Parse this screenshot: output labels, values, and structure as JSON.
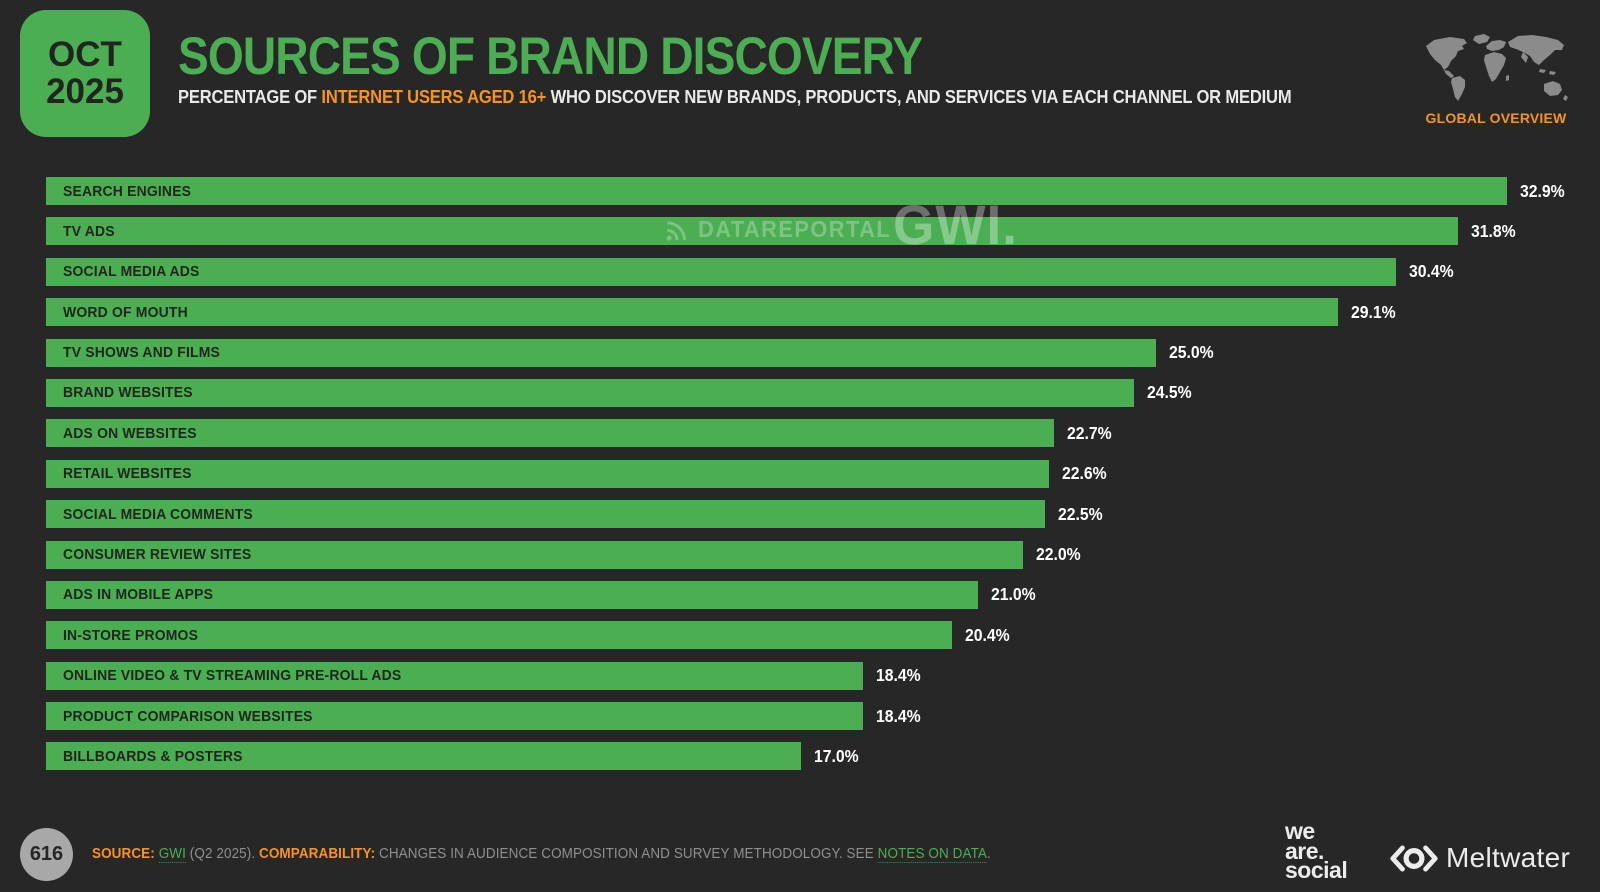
{
  "badge": {
    "month": "OCT",
    "year": "2025"
  },
  "header": {
    "title": "SOURCES OF BRAND DISCOVERY",
    "subtitle_prefix": "PERCENTAGE OF ",
    "subtitle_highlight": "INTERNET USERS AGED 16+",
    "subtitle_suffix": " WHO DISCOVER NEW BRANDS, PRODUCTS, AND SERVICES VIA EACH CHANNEL OR MEDIUM",
    "region_label": "GLOBAL OVERVIEW"
  },
  "watermarks": {
    "datareportal": "DATAREPORTAL",
    "gwi": "GWI."
  },
  "chart_data": {
    "type": "bar",
    "orientation": "horizontal",
    "title": "SOURCES OF BRAND DISCOVERY",
    "categories": [
      "SEARCH ENGINES",
      "TV ADS",
      "SOCIAL MEDIA ADS",
      "WORD OF MOUTH",
      "TV SHOWS AND FILMS",
      "BRAND WEBSITES",
      "ADS ON WEBSITES",
      "RETAIL WEBSITES",
      "SOCIAL MEDIA COMMENTS",
      "CONSUMER REVIEW SITES",
      "ADS IN MOBILE APPS",
      "IN-STORE PROMOS",
      "ONLINE VIDEO & TV STREAMING PRE-ROLL ADS",
      "PRODUCT COMPARISON WEBSITES",
      "BILLBOARDS & POSTERS"
    ],
    "values": [
      32.9,
      31.8,
      30.4,
      29.1,
      25.0,
      24.5,
      22.7,
      22.6,
      22.5,
      22.0,
      21.0,
      20.4,
      18.4,
      18.4,
      17.0
    ],
    "value_suffix": "%",
    "axis_max": 34.1,
    "bar_color": "#4cae52",
    "value_label_color": "#ffffff",
    "grid": false,
    "legend": false
  },
  "footer": {
    "page_number": "616",
    "source_label": "SOURCE:",
    "source_link": "GWI",
    "source_rest": " (Q2 2025). ",
    "comparability_label": "COMPARABILITY:",
    "comparability_text": " CHANGES IN AUDIENCE COMPOSITION AND SURVEY METHODOLOGY. SEE ",
    "notes_link": "NOTES ON DATA",
    "period": ".",
    "we_are_social_line1": "we",
    "we_are_social_line2": "are.",
    "we_are_social_line3": "social",
    "meltwater": "Meltwater"
  },
  "colors": {
    "green": "#4cae52",
    "orange": "#f7941e",
    "background": "#272727",
    "dark_text": "#20261f",
    "footer_gray": "#8f8f8f",
    "circle_gray": "#a8a8a8",
    "map_gray": "#8b8b8b",
    "logo_light": "#ececec"
  }
}
